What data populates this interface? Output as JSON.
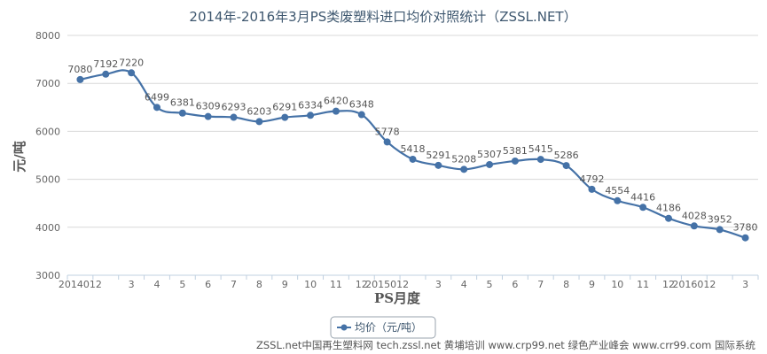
{
  "chart_data": {
    "type": "line",
    "title": "2014年-2016年3月PS类废塑料进口均价对照统计（ZSSL.NET）",
    "xlabel": "PS月度",
    "ylabel": "元/吨",
    "ylim": [
      3000,
      8000
    ],
    "yticks": [
      3000,
      4000,
      5000,
      6000,
      7000,
      8000
    ],
    "categories": [
      "201401",
      "2",
      "3",
      "4",
      "5",
      "6",
      "7",
      "8",
      "9",
      "10",
      "11",
      "12",
      "201501",
      "2",
      "3",
      "4",
      "5",
      "6",
      "7",
      "8",
      "9",
      "10",
      "11",
      "12",
      "201601",
      "2",
      "3"
    ],
    "tick_labels": [
      "2014012",
      "",
      "3",
      "4",
      "5",
      "6",
      "7",
      "8",
      "9",
      "10",
      "11",
      "12",
      "2015012",
      "",
      "3",
      "4",
      "5",
      "6",
      "7",
      "8",
      "9",
      "10",
      "11",
      "12",
      "2016012",
      "",
      "3"
    ],
    "series": [
      {
        "name": "均价（元/吨）",
        "values": [
          7080,
          7192,
          7220,
          6499,
          6381,
          6309,
          6293,
          6203,
          6291,
          6334,
          6420,
          6348,
          5778,
          5418,
          5291,
          5208,
          5307,
          5381,
          5415,
          5286,
          4792,
          4554,
          4416,
          4186,
          4028,
          3952,
          3780
        ],
        "color": "#4572a7"
      }
    ],
    "legend": {
      "position": "bottom-center",
      "label": "均价（元/吨）"
    },
    "grid": true
  },
  "footer": "ZSSL.net中国再生塑料网 tech.zssl.net 黄埔培训 www.crp99.net 绿色产业峰会 www.crr99.com 国际系统"
}
